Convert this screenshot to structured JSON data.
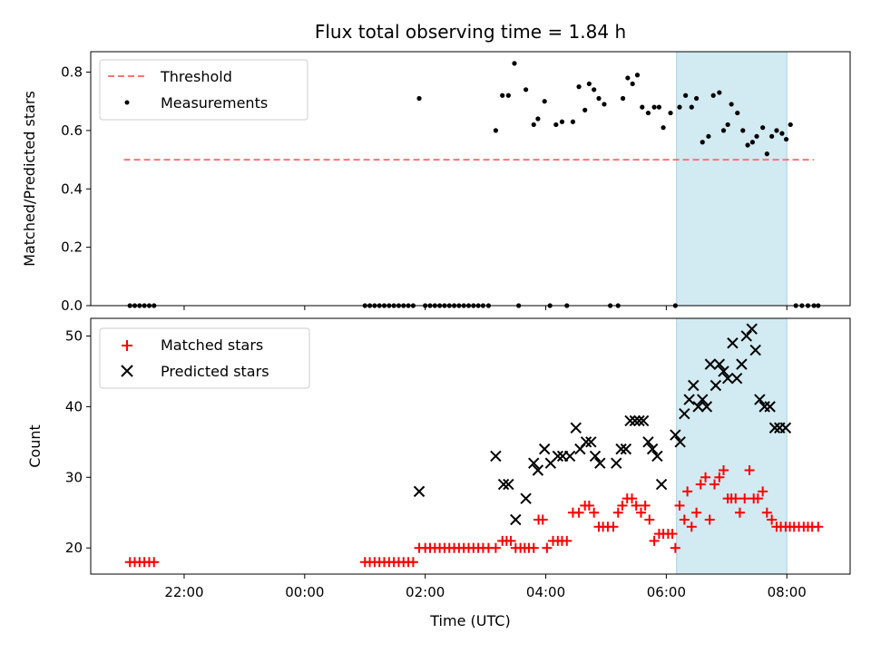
{
  "chart_data": [
    {
      "type": "scatter",
      "title": "Flux total observing time = 1.84 h",
      "xlabel": "",
      "ylabel": "Matched/Predicted stars",
      "x_ticks": [
        "22:00",
        "00:00",
        "02:00",
        "04:00",
        "06:00",
        "08:00"
      ],
      "y_ticks": [
        "0.0",
        "0.2",
        "0.4",
        "0.6",
        "0.8"
      ],
      "ylim": [
        0,
        0.87
      ],
      "xlim_hours": [
        -3.55,
        9.05
      ],
      "grid": false,
      "legend_placement": "upper-left",
      "highlight_span_hours": [
        6.17,
        8.0
      ],
      "highlight_color": "#add8e6",
      "series": [
        {
          "name": "Threshold",
          "style": "dashed-line",
          "color": "#ff7373",
          "x": [
            -3.0,
            8.45
          ],
          "y": [
            0.5,
            0.5
          ]
        },
        {
          "name": "Measurements",
          "style": "dots",
          "color": "#000000",
          "x": [
            -2.9,
            -2.82,
            -2.74,
            -2.66,
            -2.58,
            -2.5,
            1.0,
            1.08,
            1.16,
            1.24,
            1.32,
            1.4,
            1.48,
            1.56,
            1.64,
            1.72,
            1.8,
            1.9,
            2.0,
            2.08,
            2.16,
            2.24,
            2.32,
            2.4,
            2.48,
            2.56,
            2.64,
            2.72,
            2.8,
            2.88,
            2.96,
            3.05,
            3.17,
            3.28,
            3.38,
            3.48,
            3.55,
            3.67,
            3.8,
            3.87,
            3.98,
            4.07,
            4.17,
            4.27,
            4.35,
            4.45,
            4.55,
            4.65,
            4.72,
            4.8,
            4.88,
            4.97,
            5.07,
            5.2,
            5.28,
            5.36,
            5.44,
            5.52,
            5.6,
            5.7,
            5.8,
            5.88,
            5.95,
            6.07,
            6.15,
            6.22,
            6.32,
            6.42,
            6.5,
            6.6,
            6.7,
            6.78,
            6.88,
            6.95,
            7.02,
            7.08,
            7.18,
            7.27,
            7.35,
            7.43,
            7.5,
            7.6,
            7.67,
            7.75,
            7.83,
            7.92,
            7.99,
            8.06,
            8.15,
            8.25,
            8.35,
            8.45,
            8.52
          ],
          "y": [
            0,
            0,
            0,
            0,
            0,
            0,
            0,
            0,
            0,
            0,
            0,
            0,
            0,
            0,
            0,
            0,
            0,
            0.71,
            0,
            0,
            0,
            0,
            0,
            0,
            0,
            0,
            0,
            0,
            0,
            0,
            0,
            0,
            0.6,
            0.72,
            0.72,
            0.83,
            0,
            0.74,
            0.62,
            0.64,
            0.7,
            0,
            0.62,
            0.63,
            0,
            0.63,
            0.75,
            0.67,
            0.76,
            0.74,
            0.71,
            0.69,
            0,
            0,
            0.71,
            0.78,
            0.76,
            0.79,
            0.68,
            0.66,
            0.68,
            0.68,
            0.61,
            0.66,
            0,
            0.68,
            0.72,
            0.68,
            0.71,
            0.56,
            0.58,
            0.72,
            0.73,
            0.6,
            0.62,
            0.69,
            0.66,
            0.6,
            0.55,
            0.56,
            0.58,
            0.61,
            0.52,
            0.58,
            0.6,
            0.59,
            0.57,
            0.62,
            0,
            0,
            0,
            0,
            0
          ]
        }
      ]
    },
    {
      "type": "scatter",
      "title": "",
      "xlabel": "Time (UTC)",
      "ylabel": "Count",
      "x_ticks": [
        "22:00",
        "00:00",
        "02:00",
        "04:00",
        "06:00",
        "08:00"
      ],
      "y_ticks": [
        "20",
        "30",
        "40",
        "50"
      ],
      "ylim": [
        16.3,
        52.5
      ],
      "xlim_hours": [
        -3.55,
        9.05
      ],
      "grid": false,
      "legend_placement": "upper-left",
      "highlight_span_hours": [
        6.17,
        8.0
      ],
      "highlight_color": "#add8e6",
      "series": [
        {
          "name": "Matched stars",
          "style": "plus",
          "color": "#ff0000",
          "x": [
            -2.9,
            -2.82,
            -2.74,
            -2.66,
            -2.58,
            -2.5,
            1.0,
            1.08,
            1.16,
            1.24,
            1.32,
            1.4,
            1.48,
            1.56,
            1.64,
            1.72,
            1.8,
            1.9,
            2.0,
            2.08,
            2.16,
            2.24,
            2.32,
            2.4,
            2.48,
            2.56,
            2.64,
            2.72,
            2.8,
            2.88,
            2.96,
            3.05,
            3.17,
            3.28,
            3.35,
            3.42,
            3.5,
            3.58,
            3.65,
            3.72,
            3.8,
            3.88,
            3.95,
            4.02,
            4.12,
            4.2,
            4.27,
            4.35,
            4.45,
            4.55,
            4.65,
            4.72,
            4.8,
            4.88,
            4.95,
            5.03,
            5.12,
            5.2,
            5.27,
            5.35,
            5.43,
            5.5,
            5.58,
            5.65,
            5.72,
            5.8,
            5.88,
            5.95,
            6.03,
            6.1,
            6.15,
            6.22,
            6.3,
            6.35,
            6.42,
            6.5,
            6.57,
            6.65,
            6.72,
            6.8,
            6.88,
            6.95,
            7.02,
            7.08,
            7.15,
            7.22,
            7.3,
            7.38,
            7.45,
            7.52,
            7.6,
            7.67,
            7.75,
            7.83,
            7.9,
            7.98,
            8.05,
            8.12,
            8.2,
            8.28,
            8.35,
            8.42,
            8.52
          ],
          "y": [
            18,
            18,
            18,
            18,
            18,
            18,
            18,
            18,
            18,
            18,
            18,
            18,
            18,
            18,
            18,
            18,
            18,
            20,
            20,
            20,
            20,
            20,
            20,
            20,
            20,
            20,
            20,
            20,
            20,
            20,
            20,
            20,
            20,
            21,
            21,
            21,
            20,
            20,
            20,
            20,
            20,
            24,
            24,
            20,
            21,
            21,
            21,
            21,
            25,
            25,
            26,
            26,
            25,
            23,
            23,
            23,
            23,
            25,
            26,
            27,
            27,
            26,
            25,
            26,
            24,
            21,
            22,
            22,
            22,
            22,
            20,
            26,
            24,
            28,
            23,
            25,
            29,
            30,
            24,
            29,
            30,
            31,
            27,
            27,
            27,
            25,
            27,
            31,
            27,
            27,
            28,
            25,
            24,
            23,
            23,
            23,
            23,
            23,
            23,
            23,
            23,
            23,
            23
          ]
        },
        {
          "name": "Predicted stars",
          "style": "x",
          "color": "#000000",
          "x": [
            1.9,
            3.17,
            3.3,
            3.38,
            3.5,
            3.67,
            3.8,
            3.87,
            3.98,
            4.08,
            4.2,
            4.28,
            4.4,
            4.5,
            4.57,
            4.67,
            4.75,
            4.82,
            4.9,
            5.17,
            5.25,
            5.33,
            5.4,
            5.48,
            5.55,
            5.62,
            5.7,
            5.77,
            5.85,
            5.92,
            6.15,
            6.23,
            6.3,
            6.38,
            6.45,
            6.53,
            6.6,
            6.67,
            6.73,
            6.82,
            6.88,
            6.95,
            7.02,
            7.1,
            7.17,
            7.25,
            7.33,
            7.42,
            7.48,
            7.55,
            7.63,
            7.72,
            7.8,
            7.88,
            7.98
          ],
          "y": [
            28,
            33,
            29,
            29,
            24,
            27,
            32,
            31,
            34,
            32,
            33,
            33,
            33,
            37,
            34,
            35,
            35,
            33,
            32,
            32,
            34,
            34,
            38,
            38,
            38,
            38,
            35,
            34,
            33,
            29,
            36,
            35,
            39,
            41,
            43,
            40,
            41,
            40,
            46,
            43,
            46,
            45,
            44,
            49,
            44,
            46,
            50,
            51,
            48,
            41,
            40,
            40,
            37,
            37,
            37
          ]
        }
      ]
    }
  ]
}
